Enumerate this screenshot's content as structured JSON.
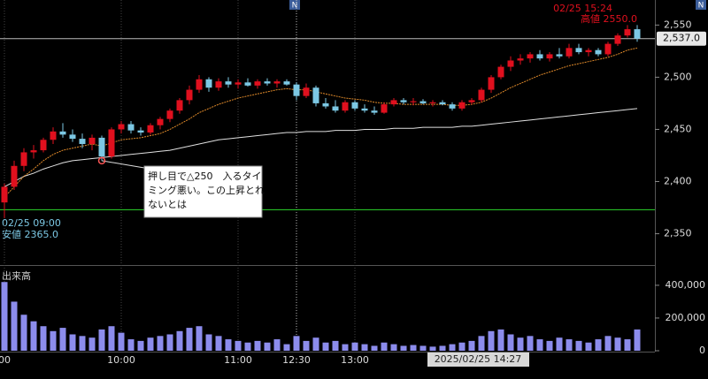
{
  "chart_data": {
    "type": "candlestick",
    "categories": [
      "00",
      null,
      null,
      null,
      null,
      null,
      null,
      null,
      null,
      null,
      null,
      null,
      "10:00",
      null,
      null,
      null,
      null,
      null,
      null,
      null,
      null,
      null,
      null,
      null,
      "11:00",
      null,
      null,
      null,
      null,
      null,
      "12:30",
      null,
      null,
      null,
      null,
      null,
      "13:00",
      null,
      null,
      null,
      null,
      null,
      null,
      null,
      null,
      null,
      null,
      null,
      null,
      null,
      null,
      null,
      null,
      null,
      null,
      null,
      null,
      null,
      null,
      null,
      null,
      null,
      null,
      null,
      null,
      null
    ],
    "open": [
      2380,
      2395,
      2415,
      2428,
      2430,
      2440,
      2448,
      2445,
      2441,
      2436,
      2442,
      2424,
      2450,
      2455,
      2449,
      2447,
      2454,
      2460,
      2468,
      2478,
      2488,
      2498,
      2490,
      2496,
      2493,
      2495,
      2492,
      2496,
      2494,
      2496,
      2493,
      2482,
      2490,
      2475,
      2472,
      2468,
      2476,
      2470,
      2468,
      2466,
      2474,
      2478,
      2476,
      2477,
      2475,
      2476,
      2474,
      2470,
      2476,
      2478,
      2488,
      2500,
      2510,
      2516,
      2518,
      2522,
      2518,
      2522,
      2520,
      2528,
      2524,
      2526,
      2522,
      2532,
      2540,
      2546
    ],
    "high": [
      2398,
      2420,
      2432,
      2435,
      2442,
      2452,
      2456,
      2450,
      2446,
      2445,
      2444,
      2452,
      2458,
      2458,
      2452,
      2456,
      2462,
      2470,
      2480,
      2492,
      2502,
      2500,
      2499,
      2500,
      2498,
      2499,
      2498,
      2499,
      2498,
      2498,
      2495,
      2494,
      2492,
      2480,
      2478,
      2478,
      2478,
      2474,
      2472,
      2476,
      2480,
      2480,
      2480,
      2479,
      2478,
      2478,
      2476,
      2478,
      2480,
      2490,
      2502,
      2512,
      2520,
      2522,
      2524,
      2526,
      2524,
      2528,
      2532,
      2532,
      2528,
      2528,
      2534,
      2542,
      2550,
      2550
    ],
    "low": [
      2365,
      2392,
      2410,
      2422,
      2428,
      2436,
      2442,
      2438,
      2432,
      2430,
      2420,
      2422,
      2446,
      2446,
      2444,
      2445,
      2450,
      2457,
      2465,
      2474,
      2485,
      2486,
      2487,
      2490,
      2489,
      2491,
      2489,
      2492,
      2490,
      2492,
      2478,
      2480,
      2472,
      2470,
      2466,
      2466,
      2468,
      2466,
      2464,
      2465,
      2472,
      2474,
      2473,
      2474,
      2472,
      2473,
      2468,
      2468,
      2474,
      2476,
      2485,
      2498,
      2506,
      2512,
      2514,
      2516,
      2515,
      2518,
      2518,
      2522,
      2520,
      2520,
      2520,
      2530,
      2538,
      2534
    ],
    "close": [
      2395,
      2415,
      2428,
      2430,
      2440,
      2448,
      2445,
      2441,
      2436,
      2442,
      2424,
      2450,
      2455,
      2449,
      2447,
      2454,
      2460,
      2468,
      2478,
      2488,
      2498,
      2490,
      2496,
      2493,
      2495,
      2492,
      2496,
      2494,
      2496,
      2493,
      2482,
      2490,
      2475,
      2472,
      2468,
      2476,
      2470,
      2468,
      2466,
      2474,
      2478,
      2476,
      2477,
      2475,
      2476,
      2474,
      2470,
      2476,
      2478,
      2488,
      2500,
      2510,
      2516,
      2518,
      2522,
      2518,
      2522,
      2520,
      2528,
      2524,
      2526,
      2522,
      2532,
      2540,
      2546,
      2537
    ],
    "up_color": "#e0101e",
    "down_color": "#7cc8e4",
    "moving_averages": [
      {
        "color": "#e0e0e0",
        "values": [
          2395,
          2400,
          2405,
          2408,
          2412,
          2415,
          2418,
          2420,
          2421,
          2422,
          2423,
          2424,
          2425,
          2426,
          2427,
          2428,
          2429,
          2430,
          2432,
          2434,
          2436,
          2438,
          2440,
          2441,
          2442,
          2443,
          2444,
          2445,
          2446,
          2447,
          2447,
          2448,
          2448,
          2448,
          2449,
          2449,
          2449,
          2450,
          2450,
          2450,
          2451,
          2451,
          2451,
          2452,
          2452,
          2452,
          2452,
          2453,
          2453,
          2454,
          2455,
          2456,
          2457,
          2458,
          2459,
          2460,
          2461,
          2462,
          2463,
          2464,
          2465,
          2466,
          2467,
          2468,
          2469,
          2470
        ]
      },
      {
        "color": "#e08a2a",
        "values": [
          2385,
          2395,
          2405,
          2412,
          2420,
          2426,
          2430,
          2432,
          2434,
          2436,
          2434,
          2437,
          2440,
          2441,
          2442,
          2444,
          2446,
          2450,
          2455,
          2460,
          2466,
          2470,
          2474,
          2477,
          2480,
          2482,
          2484,
          2486,
          2488,
          2489,
          2488,
          2488,
          2486,
          2484,
          2482,
          2480,
          2479,
          2478,
          2476,
          2475,
          2475,
          2474,
          2474,
          2474,
          2474,
          2474,
          2473,
          2473,
          2474,
          2476,
          2480,
          2485,
          2490,
          2494,
          2498,
          2502,
          2505,
          2508,
          2511,
          2513,
          2515,
          2517,
          2519,
          2522,
          2526,
          2528
        ]
      }
    ],
    "ylim": [
      2320,
      2574
    ],
    "yticks": [
      {
        "value": 2350,
        "label": "2,350"
      },
      {
        "value": 2400,
        "label": "2,400"
      },
      {
        "value": 2450,
        "label": "2,450"
      },
      {
        "value": 2500,
        "label": "2,500"
      },
      {
        "value": 2550,
        "label": "2,550"
      }
    ],
    "last_price": {
      "value": 2537.0,
      "label": "2,537.0"
    },
    "horizontal_line": {
      "value": 2373,
      "color": "#2bd62b"
    },
    "high_info": {
      "time": "02/25 15:24",
      "label": "高値 2550.0"
    },
    "low_info": {
      "time": "02/25 09:00",
      "label": "安値 2365.0"
    },
    "annotation": {
      "lines": [
        "押し目で△250　入るタイ",
        "ミング悪い。この上昇とれ",
        "ないとは"
      ]
    },
    "cursor_label": "2025/02/25 14:27",
    "news_marker": "N",
    "volume": {
      "label": "出来高",
      "color": "#8c8cec",
      "values": [
        420000,
        300000,
        220000,
        180000,
        150000,
        120000,
        140000,
        100000,
        90000,
        80000,
        130000,
        150000,
        110000,
        70000,
        60000,
        80000,
        90000,
        100000,
        120000,
        140000,
        150000,
        100000,
        90000,
        70000,
        60000,
        50000,
        60000,
        50000,
        70000,
        40000,
        90000,
        60000,
        80000,
        50000,
        60000,
        40000,
        50000,
        40000,
        30000,
        50000,
        40000,
        30000,
        35000,
        30000,
        25000,
        30000,
        40000,
        50000,
        60000,
        90000,
        120000,
        130000,
        100000,
        80000,
        90000,
        70000,
        60000,
        80000,
        70000,
        60000,
        50000,
        70000,
        90000,
        80000,
        70000,
        130000
      ],
      "ylim": [
        0,
        513000
      ],
      "yticks": [
        0,
        {
          "value": 200000,
          "label": "200,000"
        },
        {
          "value": 400000,
          "label": "400,000"
        }
      ]
    }
  }
}
